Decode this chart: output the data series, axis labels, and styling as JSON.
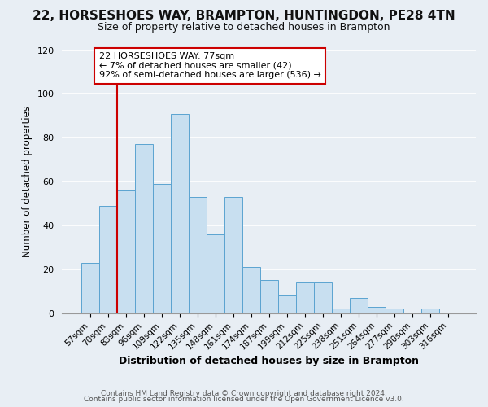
{
  "title": "22, HORSESHOES WAY, BRAMPTON, HUNTINGDON, PE28 4TN",
  "subtitle": "Size of property relative to detached houses in Brampton",
  "xlabel": "Distribution of detached houses by size in Brampton",
  "ylabel": "Number of detached properties",
  "bar_color": "#c8dff0",
  "bar_edge_color": "#5ba3d0",
  "categories": [
    "57sqm",
    "70sqm",
    "83sqm",
    "96sqm",
    "109sqm",
    "122sqm",
    "135sqm",
    "148sqm",
    "161sqm",
    "174sqm",
    "187sqm",
    "199sqm",
    "212sqm",
    "225sqm",
    "238sqm",
    "251sqm",
    "264sqm",
    "277sqm",
    "290sqm",
    "303sqm",
    "316sqm"
  ],
  "values": [
    23,
    49,
    56,
    77,
    59,
    91,
    53,
    36,
    53,
    21,
    15,
    8,
    14,
    14,
    2,
    7,
    3,
    2,
    0,
    2,
    0
  ],
  "vline_x_idx": 1,
  "vline_color": "#cc0000",
  "annotation_text": "22 HORSESHOES WAY: 77sqm\n← 7% of detached houses are smaller (42)\n92% of semi-detached houses are larger (536) →",
  "annotation_box_color": "#ffffff",
  "annotation_box_edge": "#cc0000",
  "ylim": [
    0,
    120
  ],
  "yticks": [
    0,
    20,
    40,
    60,
    80,
    100,
    120
  ],
  "footer1": "Contains HM Land Registry data © Crown copyright and database right 2024.",
  "footer2": "Contains public sector information licensed under the Open Government Licence v3.0.",
  "bg_color": "#e8eef4",
  "title_fontsize": 11,
  "subtitle_fontsize": 9,
  "xlabel_fontsize": 9,
  "ylabel_fontsize": 8.5
}
